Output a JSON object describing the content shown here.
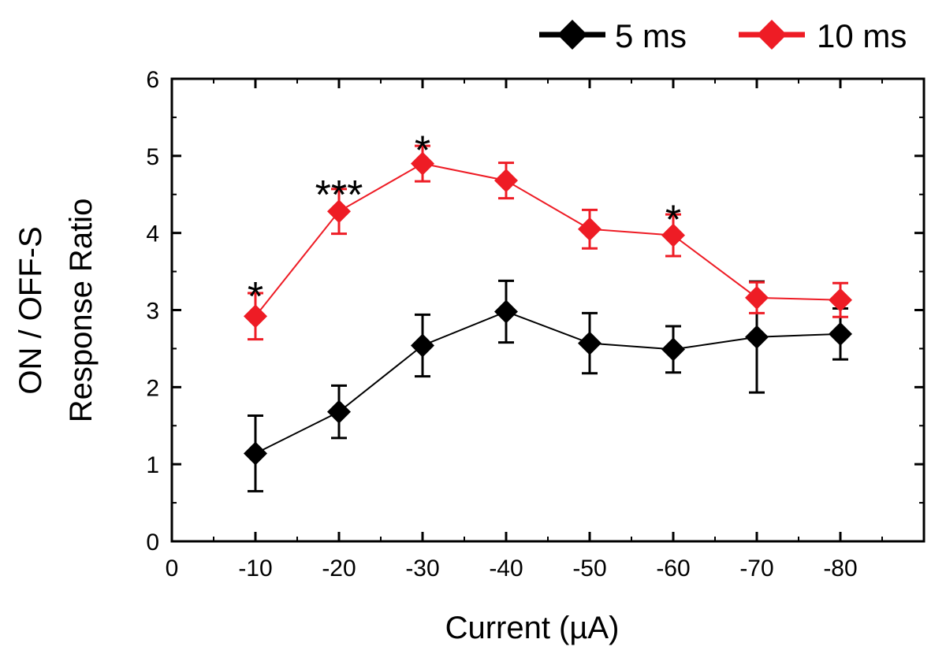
{
  "chart_data": {
    "type": "line",
    "title": "",
    "xlabel": "Current (µA)",
    "ylabel_line1": "ON / OFF-S",
    "ylabel_line2": "Response Ratio",
    "x_ticks": [
      0,
      -10,
      -20,
      -30,
      -40,
      -50,
      -60,
      -70,
      -80
    ],
    "x_tick_labels": [
      "0",
      "-10",
      "-20",
      "-30",
      "-40",
      "-50",
      "-60",
      "-70",
      "-80"
    ],
    "xlim": [
      0,
      -90
    ],
    "y_ticks": [
      0,
      1,
      2,
      3,
      4,
      5,
      6
    ],
    "y_tick_labels": [
      "0",
      "1",
      "2",
      "3",
      "4",
      "5",
      "6"
    ],
    "ylim": [
      0,
      6
    ],
    "legend_position": "top-right, outside plot",
    "series": [
      {
        "name": "5 ms",
        "color": "#000000",
        "marker": "diamond",
        "x": [
          -10,
          -20,
          -30,
          -40,
          -50,
          -60,
          -70,
          -80
        ],
        "y": [
          1.14,
          1.68,
          2.54,
          2.98,
          2.57,
          2.49,
          2.65,
          2.69
        ],
        "err": [
          0.49,
          0.34,
          0.4,
          0.4,
          0.39,
          0.3,
          0.72,
          0.33
        ]
      },
      {
        "name": "10 ms",
        "color": "#ee1c25",
        "marker": "diamond",
        "x": [
          -10,
          -20,
          -30,
          -40,
          -50,
          -60,
          -70,
          -80
        ],
        "y": [
          2.92,
          4.28,
          4.9,
          4.68,
          4.05,
          3.97,
          3.16,
          3.13
        ],
        "err": [
          0.3,
          0.29,
          0.23,
          0.23,
          0.25,
          0.27,
          0.2,
          0.22
        ]
      }
    ],
    "annotations": [
      {
        "text": "*",
        "x": -10,
        "y": 3.3
      },
      {
        "text": "***",
        "x": -20,
        "y": 4.62
      },
      {
        "text": "*",
        "x": -30,
        "y": 5.2
      },
      {
        "text": "*",
        "x": -60,
        "y": 4.3
      }
    ]
  }
}
